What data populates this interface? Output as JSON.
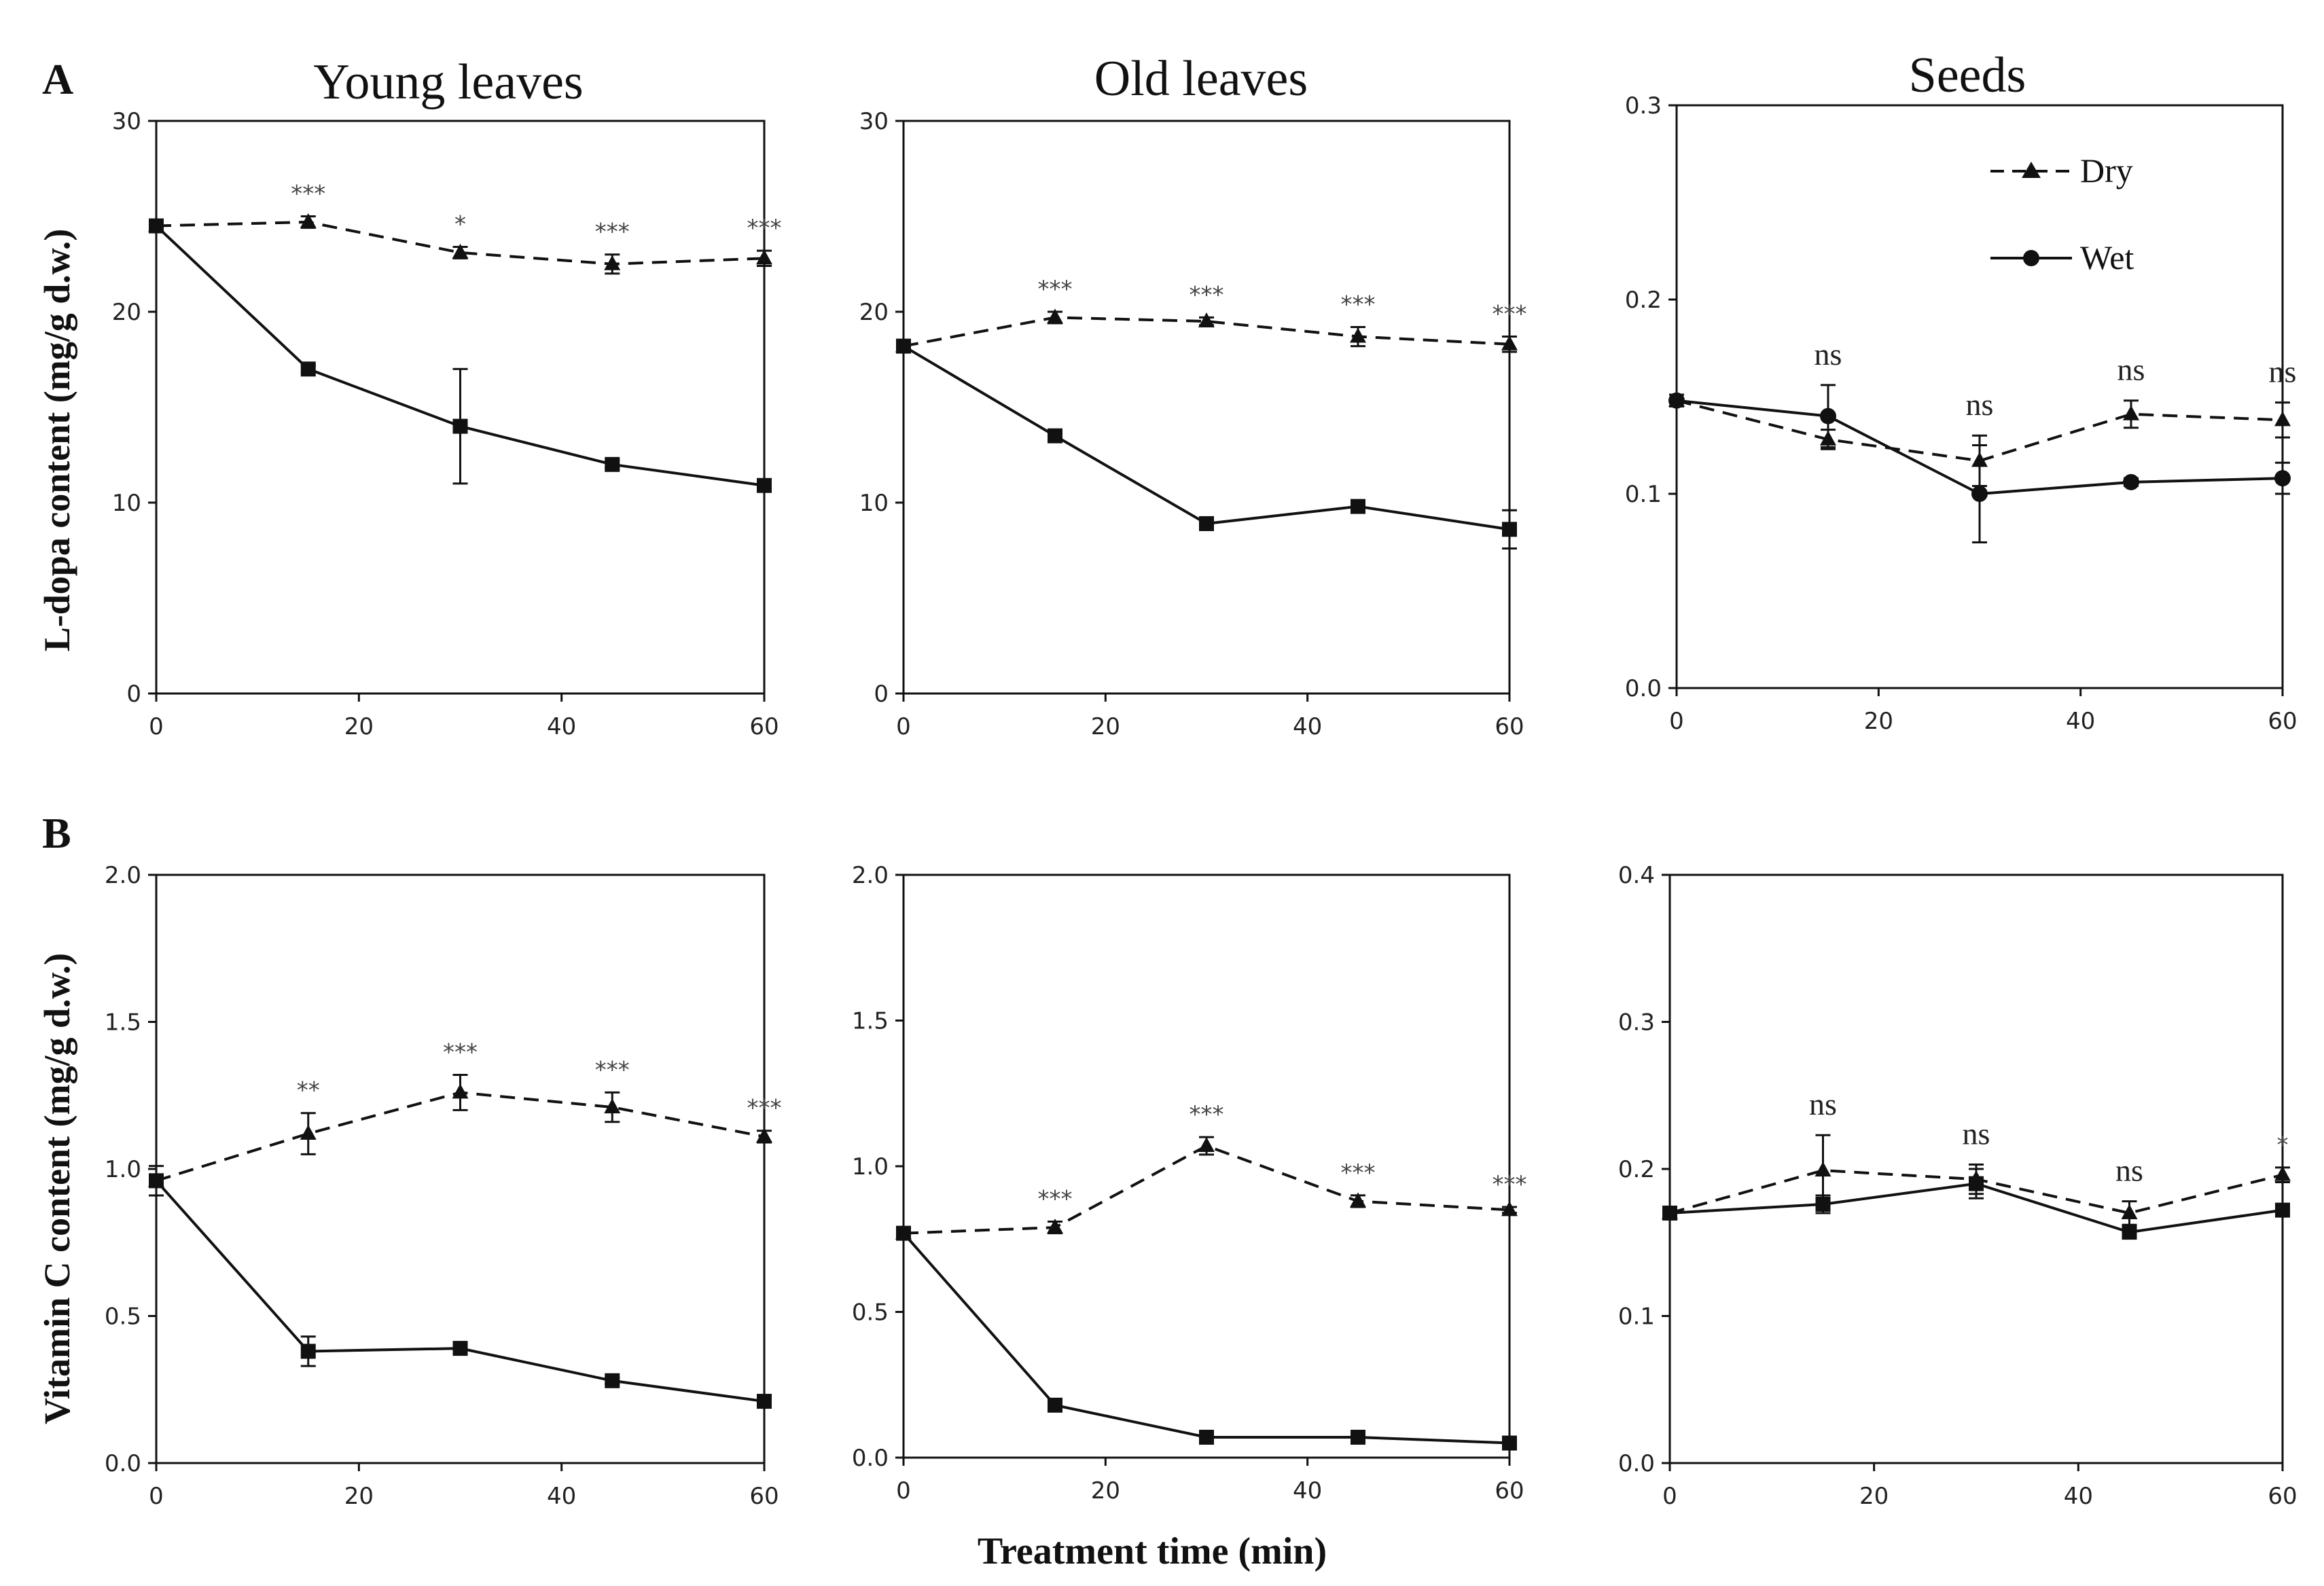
{
  "figure": {
    "panel_labels": [
      "A",
      "B"
    ],
    "xlabel": "Treatment time (min)",
    "legend": {
      "dry": "Dry",
      "wet": "Wet"
    }
  },
  "chart_data": [
    {
      "id": "A1",
      "type": "line",
      "title": "Young leaves",
      "ylabel": "L-dopa content (mg/g d.w.)",
      "x": [
        0,
        15,
        30,
        45,
        60
      ],
      "xlim": [
        0,
        60
      ],
      "xticks": [
        "0",
        "20",
        "40",
        "60"
      ],
      "ylim": [
        0,
        30
      ],
      "yticks": [
        "0",
        "10",
        "20",
        "30"
      ],
      "series": [
        {
          "name": "Dry",
          "values": [
            24.5,
            24.7,
            23.1,
            22.5,
            22.8
          ],
          "errors": [
            0.2,
            0.3,
            0.3,
            0.5,
            0.4
          ],
          "marker": "triangle",
          "dash": true
        },
        {
          "name": "Wet",
          "values": [
            24.5,
            17.0,
            14.0,
            12.0,
            10.9
          ],
          "errors": [
            0.2,
            0.2,
            3.0,
            0.2,
            0.2
          ],
          "marker": "square",
          "dash": false
        }
      ],
      "significance": [
        "***",
        "*",
        "***",
        "***"
      ]
    },
    {
      "id": "A2",
      "type": "line",
      "title": "Old leaves",
      "x": [
        0,
        15,
        30,
        45,
        60
      ],
      "xlim": [
        0,
        60
      ],
      "xticks": [
        "0",
        "20",
        "40",
        "60"
      ],
      "ylim": [
        0,
        30
      ],
      "yticks": [
        "0",
        "10",
        "20",
        "30"
      ],
      "series": [
        {
          "name": "Dry",
          "values": [
            18.2,
            19.7,
            19.5,
            18.7,
            18.3
          ],
          "errors": [
            0.2,
            0.3,
            0.2,
            0.5,
            0.4
          ],
          "marker": "triangle",
          "dash": true
        },
        {
          "name": "Wet",
          "values": [
            18.2,
            13.5,
            8.9,
            9.8,
            8.6
          ],
          "errors": [
            0.2,
            0.2,
            0.2,
            0.2,
            1.0
          ],
          "marker": "square",
          "dash": false
        }
      ],
      "significance": [
        "***",
        "***",
        "***",
        "***"
      ]
    },
    {
      "id": "A3",
      "type": "line",
      "title": "Seeds",
      "x": [
        0,
        15,
        30,
        45,
        60
      ],
      "xlim": [
        0,
        60
      ],
      "xticks": [
        "0",
        "20",
        "40",
        "60"
      ],
      "ylim": [
        0,
        0.3
      ],
      "yticks": [
        "0.0",
        "0.1",
        "0.2",
        "0.3"
      ],
      "series": [
        {
          "name": "Dry",
          "values": [
            0.148,
            0.128,
            0.117,
            0.141,
            0.138
          ],
          "errors": [
            0.003,
            0.005,
            0.013,
            0.007,
            0.009
          ],
          "marker": "triangle",
          "dash": true
        },
        {
          "name": "Wet",
          "values": [
            0.148,
            0.14,
            0.1,
            0.106,
            0.108
          ],
          "errors": [
            0.003,
            0.016,
            0.025,
            0.002,
            0.008
          ],
          "marker": "circle",
          "dash": false
        }
      ],
      "significance": [
        "ns",
        "ns",
        "ns",
        "ns"
      ],
      "legend": true
    },
    {
      "id": "B1",
      "type": "line",
      "ylabel": "Vitamin C content (mg/g d.w.)",
      "x": [
        0,
        15,
        30,
        45,
        60
      ],
      "xlim": [
        0,
        60
      ],
      "xticks": [
        "0",
        "20",
        "40",
        "60"
      ],
      "ylim": [
        0,
        2.0
      ],
      "yticks": [
        "0.0",
        "0.5",
        "1.0",
        "1.5",
        "2.0"
      ],
      "series": [
        {
          "name": "Dry",
          "values": [
            0.96,
            1.12,
            1.26,
            1.21,
            1.11
          ],
          "errors": [
            0.05,
            0.07,
            0.06,
            0.05,
            0.02
          ],
          "marker": "triangle",
          "dash": true
        },
        {
          "name": "Wet",
          "values": [
            0.96,
            0.38,
            0.39,
            0.28,
            0.21
          ],
          "errors": [
            0.02,
            0.05,
            0.01,
            0.01,
            0.01
          ],
          "marker": "square",
          "dash": false
        }
      ],
      "significance": [
        "**",
        "***",
        "***",
        "***"
      ]
    },
    {
      "id": "B2",
      "type": "line",
      "x": [
        0,
        15,
        30,
        45,
        60
      ],
      "xlim": [
        0,
        60
      ],
      "xticks": [
        "0",
        "20",
        "40",
        "60"
      ],
      "ylim": [
        0,
        2.0
      ],
      "yticks": [
        "0.0",
        "0.5",
        "1.0",
        "1.5",
        "2.0"
      ],
      "series": [
        {
          "name": "Dry",
          "values": [
            0.77,
            0.79,
            1.07,
            0.88,
            0.85
          ],
          "errors": [
            0.01,
            0.02,
            0.03,
            0.02,
            0.01
          ],
          "marker": "triangle",
          "dash": true
        },
        {
          "name": "Wet",
          "values": [
            0.77,
            0.18,
            0.07,
            0.07,
            0.05
          ],
          "errors": [
            0.01,
            0.01,
            0.01,
            0.01,
            0.01
          ],
          "marker": "square",
          "dash": false
        }
      ],
      "significance": [
        "***",
        "***",
        "***",
        "***"
      ]
    },
    {
      "id": "B3",
      "type": "line",
      "x": [
        0,
        15,
        30,
        45,
        60
      ],
      "xlim": [
        0,
        60
      ],
      "xticks": [
        "0",
        "20",
        "40",
        "60"
      ],
      "ylim": [
        0,
        0.4
      ],
      "yticks": [
        "0.0",
        "0.1",
        "0.2",
        "0.3",
        "0.4"
      ],
      "series": [
        {
          "name": "Dry",
          "values": [
            0.17,
            0.199,
            0.193,
            0.17,
            0.196
          ],
          "errors": [
            0.003,
            0.024,
            0.01,
            0.008,
            0.005
          ],
          "marker": "triangle",
          "dash": true
        },
        {
          "name": "Wet",
          "values": [
            0.17,
            0.176,
            0.19,
            0.157,
            0.172
          ],
          "errors": [
            0.003,
            0.006,
            0.01,
            0.004,
            0.003
          ],
          "marker": "square",
          "dash": false
        }
      ],
      "significance": [
        "ns",
        "ns",
        "ns",
        "*"
      ]
    }
  ]
}
